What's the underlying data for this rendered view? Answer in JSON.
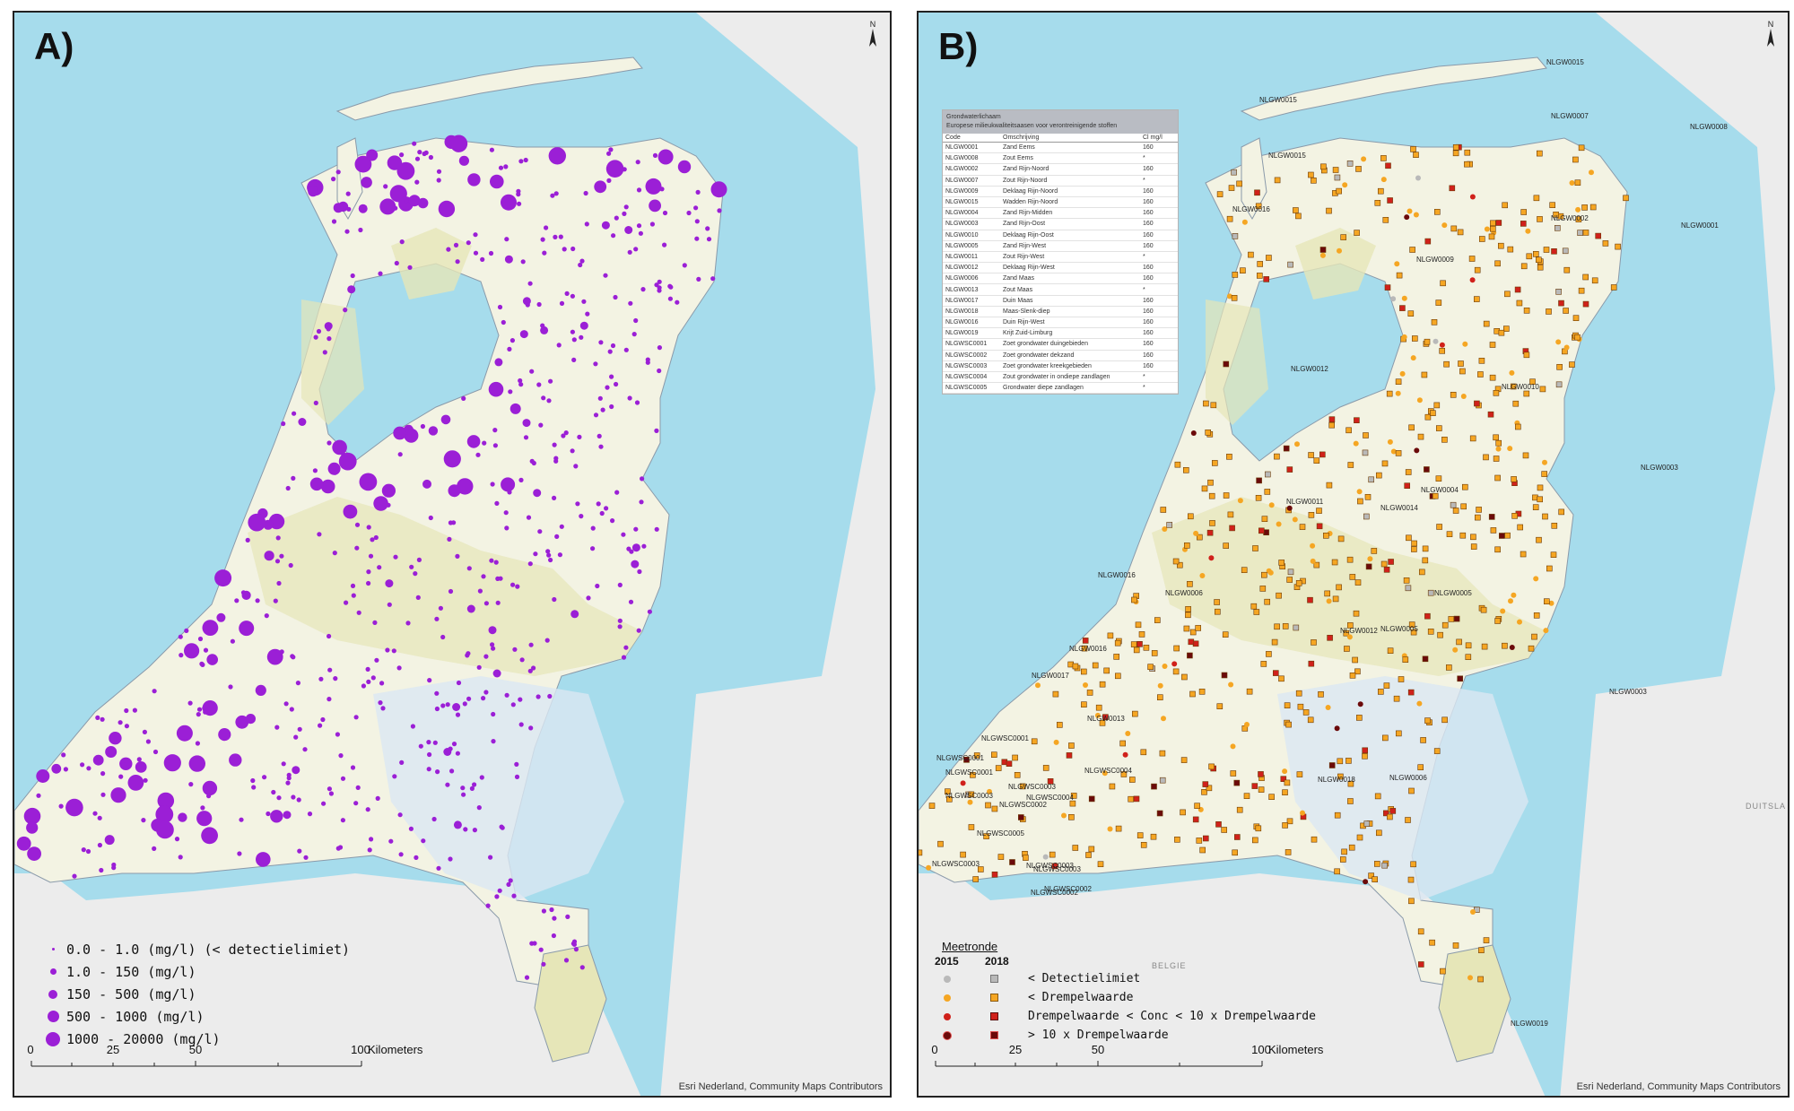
{
  "panel_a": {
    "label": "A)",
    "legend": [
      {
        "label": "0.0 - 1.0 (mg/l) (< detectielimiet)"
      },
      {
        "label": "1.0 - 150 (mg/l)"
      },
      {
        "label": "150 - 500 (mg/l)"
      },
      {
        "label": "500 - 1000 (mg/l)"
      },
      {
        "label": "1000 - 20000 (mg/l)"
      }
    ],
    "point_color": "#9b1fd6",
    "scalebar": {
      "ticks": [
        "0",
        "25",
        "50",
        "100"
      ],
      "units": "Kilometers"
    },
    "credits": "Esri Nederland, Community Maps Contributors",
    "north": "N"
  },
  "panel_b": {
    "label": "B)",
    "table": {
      "header_lines": [
        "Grondwaterlichaam",
        "Europese milieukwaliteitsaasen voor verontreinigende stoffen"
      ],
      "columns": [
        "Code",
        "Omschrijving",
        "Cl mg/l"
      ],
      "rows": [
        [
          "NLGW0001",
          "Zand Eems",
          "160"
        ],
        [
          "NLGW0008",
          "Zout Eems",
          "*"
        ],
        [
          "NLGW0002",
          "Zand Rijn-Noord",
          "160"
        ],
        [
          "NLGW0007",
          "Zout Rijn-Noord",
          "*"
        ],
        [
          "NLGW0009",
          "Deklaag Rijn-Noord",
          "160"
        ],
        [
          "NLGW0015",
          "Wadden Rijn-Noord",
          "160"
        ],
        [
          "NLGW0004",
          "Zand Rijn-Midden",
          "160"
        ],
        [
          "NLGW0003",
          "Zand Rijn-Oost",
          "160"
        ],
        [
          "NLGW0010",
          "Deklaag Rijn-Oost",
          "160"
        ],
        [
          "NLGW0005",
          "Zand Rijn-West",
          "160"
        ],
        [
          "NLGW0011",
          "Zout Rijn-West",
          "*"
        ],
        [
          "NLGW0012",
          "Deklaag Rijn-West",
          "160"
        ],
        [
          "NLGW0006",
          "Zand Maas",
          "160"
        ],
        [
          "NLGW0013",
          "Zout Maas",
          "*"
        ],
        [
          "NLGW0017",
          "Duin Maas",
          "160"
        ],
        [
          "NLGW0018",
          "Maas-Slenk-diep",
          "160"
        ],
        [
          "NLGW0016",
          "Duin Rijn-West",
          "160"
        ],
        [
          "NLGW0019",
          "Krijt Zuid-Limburg",
          "160"
        ],
        [
          "NLGWSC0001",
          "Zoet grondwater duingebieden",
          "160"
        ],
        [
          "NLGWSC0002",
          "Zoet grondwater dekzand",
          "160"
        ],
        [
          "NLGWSC0003",
          "Zoet grondwater kreekgebieden",
          "160"
        ],
        [
          "NLGWSC0004",
          "Zout grondwater in ondiepe zandlagen",
          "*"
        ],
        [
          "NLGWSC0005",
          "Grondwater diepe zandlagen",
          "*"
        ]
      ]
    },
    "legend": {
      "title": "Meetronde",
      "years": [
        "2015",
        "2018"
      ],
      "rows": [
        {
          "label": "< Detectielimiet",
          "color": "#b9b9b9"
        },
        {
          "label": "< Drempelwaarde",
          "color": "#f5a623"
        },
        {
          "label": "Drempelwaarde < Conc < 10 x Drempelwaarde",
          "color": "#d0211b"
        },
        {
          "label": "> 10 x Drempelwaarde",
          "color": "#6b0a0a"
        }
      ]
    },
    "scalebar": {
      "ticks": [
        "0",
        "25",
        "50",
        "100"
      ],
      "units": "Kilometers"
    },
    "credits": "Esri Nederland, Community Maps Contributors",
    "north": "N",
    "map_labels": [
      "NLGW0015",
      "NLGW0015",
      "NLGW0007",
      "NLGW0008",
      "NLGW0015",
      "NLGW0016",
      "NLGW0002",
      "NLGW0001",
      "NLGW0009",
      "NLGW0012",
      "NLGW0010",
      "NLGW0003",
      "NLGW0004",
      "NLGW0011",
      "NLGW0016",
      "NLGW0005",
      "NLGW0012",
      "NLGW0016",
      "NLGW0017",
      "NLGW0013",
      "NLGWSC0001",
      "NLGWSC0004",
      "NLGWSC0001",
      "NLGWSC0001",
      "NLGWSC0003",
      "NLGWSC0003",
      "NLGWSC0004",
      "NLGWSC0002",
      "NLGWSC0005",
      "NLGWSC0003",
      "NLGWSC0003",
      "NLGWSC0003",
      "NLGWSC0002",
      "NLGWSC0002",
      "NLGW0018",
      "NLGW0006",
      "NLGW0003",
      "NLGW0019",
      "NLGW0005",
      "NLGW0014",
      "NLGW0006"
    ]
  },
  "countries": {
    "east": "DUITSLA",
    "south": "BELGIE"
  }
}
